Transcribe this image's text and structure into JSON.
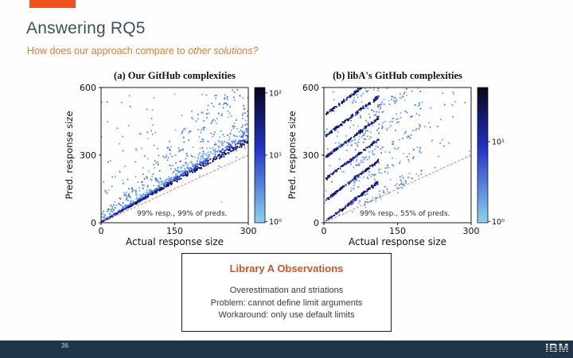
{
  "slide": {
    "title": "Answering RQ5",
    "subtitle_prefix": "How does our approach compare to ",
    "subtitle_italic": "other solutions?",
    "page_number": "36",
    "brand": "IBM",
    "accent_color": "#f0511d",
    "title_color": "#40505b",
    "subtitle_color": "#dd7d35",
    "footer_color": "#1e3648"
  },
  "observations_box": {
    "heading": "Library A Observations",
    "heading_color": "#c9562a",
    "lines": [
      "Overestimation and striations",
      "Problem: cannot define limit arguments",
      "Workaround: only use default limits"
    ]
  },
  "chart_data": [
    {
      "type": "scatter",
      "variant": "density-heatmap",
      "title": "(a) Our GitHub complexities",
      "xlabel": "Actual response size",
      "ylabel": "Pred. response size",
      "xlim": [
        0,
        300
      ],
      "ylim": [
        0,
        600
      ],
      "xticks": [
        0,
        150,
        300
      ],
      "yticks": [
        0,
        300,
        600
      ],
      "annotation": "99% resp., 99% of preds.",
      "identity_line": {
        "from": [
          0,
          0
        ],
        "to": [
          300,
          300
        ],
        "color": "#e06c6c",
        "style": "dashed"
      },
      "colorbar": {
        "scale": "log",
        "gradient": [
          "#8fd2ee",
          "#2433c8",
          "#05051a"
        ],
        "ticks": [
          {
            "label": "10²",
            "pos": 0.04
          },
          {
            "label": "10¹",
            "pos": 0.5
          },
          {
            "label": "10⁰",
            "pos": 0.99
          }
        ]
      },
      "summary": "Dense dark band of predictions just above the identity line (slight overestimation); sparse light points scattered above.",
      "pattern": {
        "seed": 42,
        "groups": [
          {
            "type": "band",
            "n": 850,
            "slope": 1.17,
            "spread": 0.28,
            "x_pow": 1.1
          },
          {
            "type": "cloud",
            "n": 260,
            "slope_min": 1.25,
            "slope_max": 2.35
          },
          {
            "type": "uniform",
            "n": 170,
            "above_slope": 1.02
          }
        ]
      }
    },
    {
      "type": "scatter",
      "variant": "density-heatmap",
      "title": "(b) libA's GitHub complexities",
      "xlabel": "Actual response size",
      "ylabel": "Pred. response size",
      "xlim": [
        0,
        300
      ],
      "ylim": [
        0,
        600
      ],
      "xticks": [
        0,
        150,
        300
      ],
      "yticks": [
        0,
        300,
        600
      ],
      "annotation": "99% resp., 55% of preds.",
      "identity_line": {
        "from": [
          0,
          0
        ],
        "to": [
          300,
          300
        ],
        "color": "#e06c6c",
        "style": "dashed"
      },
      "colorbar": {
        "scale": "log",
        "gradient": [
          "#8fd2ee",
          "#2433c8",
          "#05051a"
        ],
        "ticks": [
          {
            "label": "10¹",
            "pos": 0.4
          },
          {
            "label": "10⁰",
            "pos": 0.99
          }
        ]
      },
      "summary": "Strong overestimation with parallel diagonal striations (stripes offset by ~95 in predicted size); only 55% of predictions within plotted range.",
      "pattern": {
        "seed": 7,
        "groups": [
          {
            "type": "stripes",
            "count": 6,
            "intercept_step": 95,
            "slope": 1.62,
            "x_min": 4,
            "x_len": 108,
            "n_per": 135,
            "jitter": 7
          },
          {
            "type": "stripe_halo",
            "count": 6,
            "intercept_step": 95,
            "slope": 1.15,
            "x_min": 55,
            "x_len": 145,
            "n_per": 55,
            "jitter": 30
          },
          {
            "type": "uniform",
            "n": 120,
            "above_slope": 1.05
          }
        ]
      }
    }
  ]
}
